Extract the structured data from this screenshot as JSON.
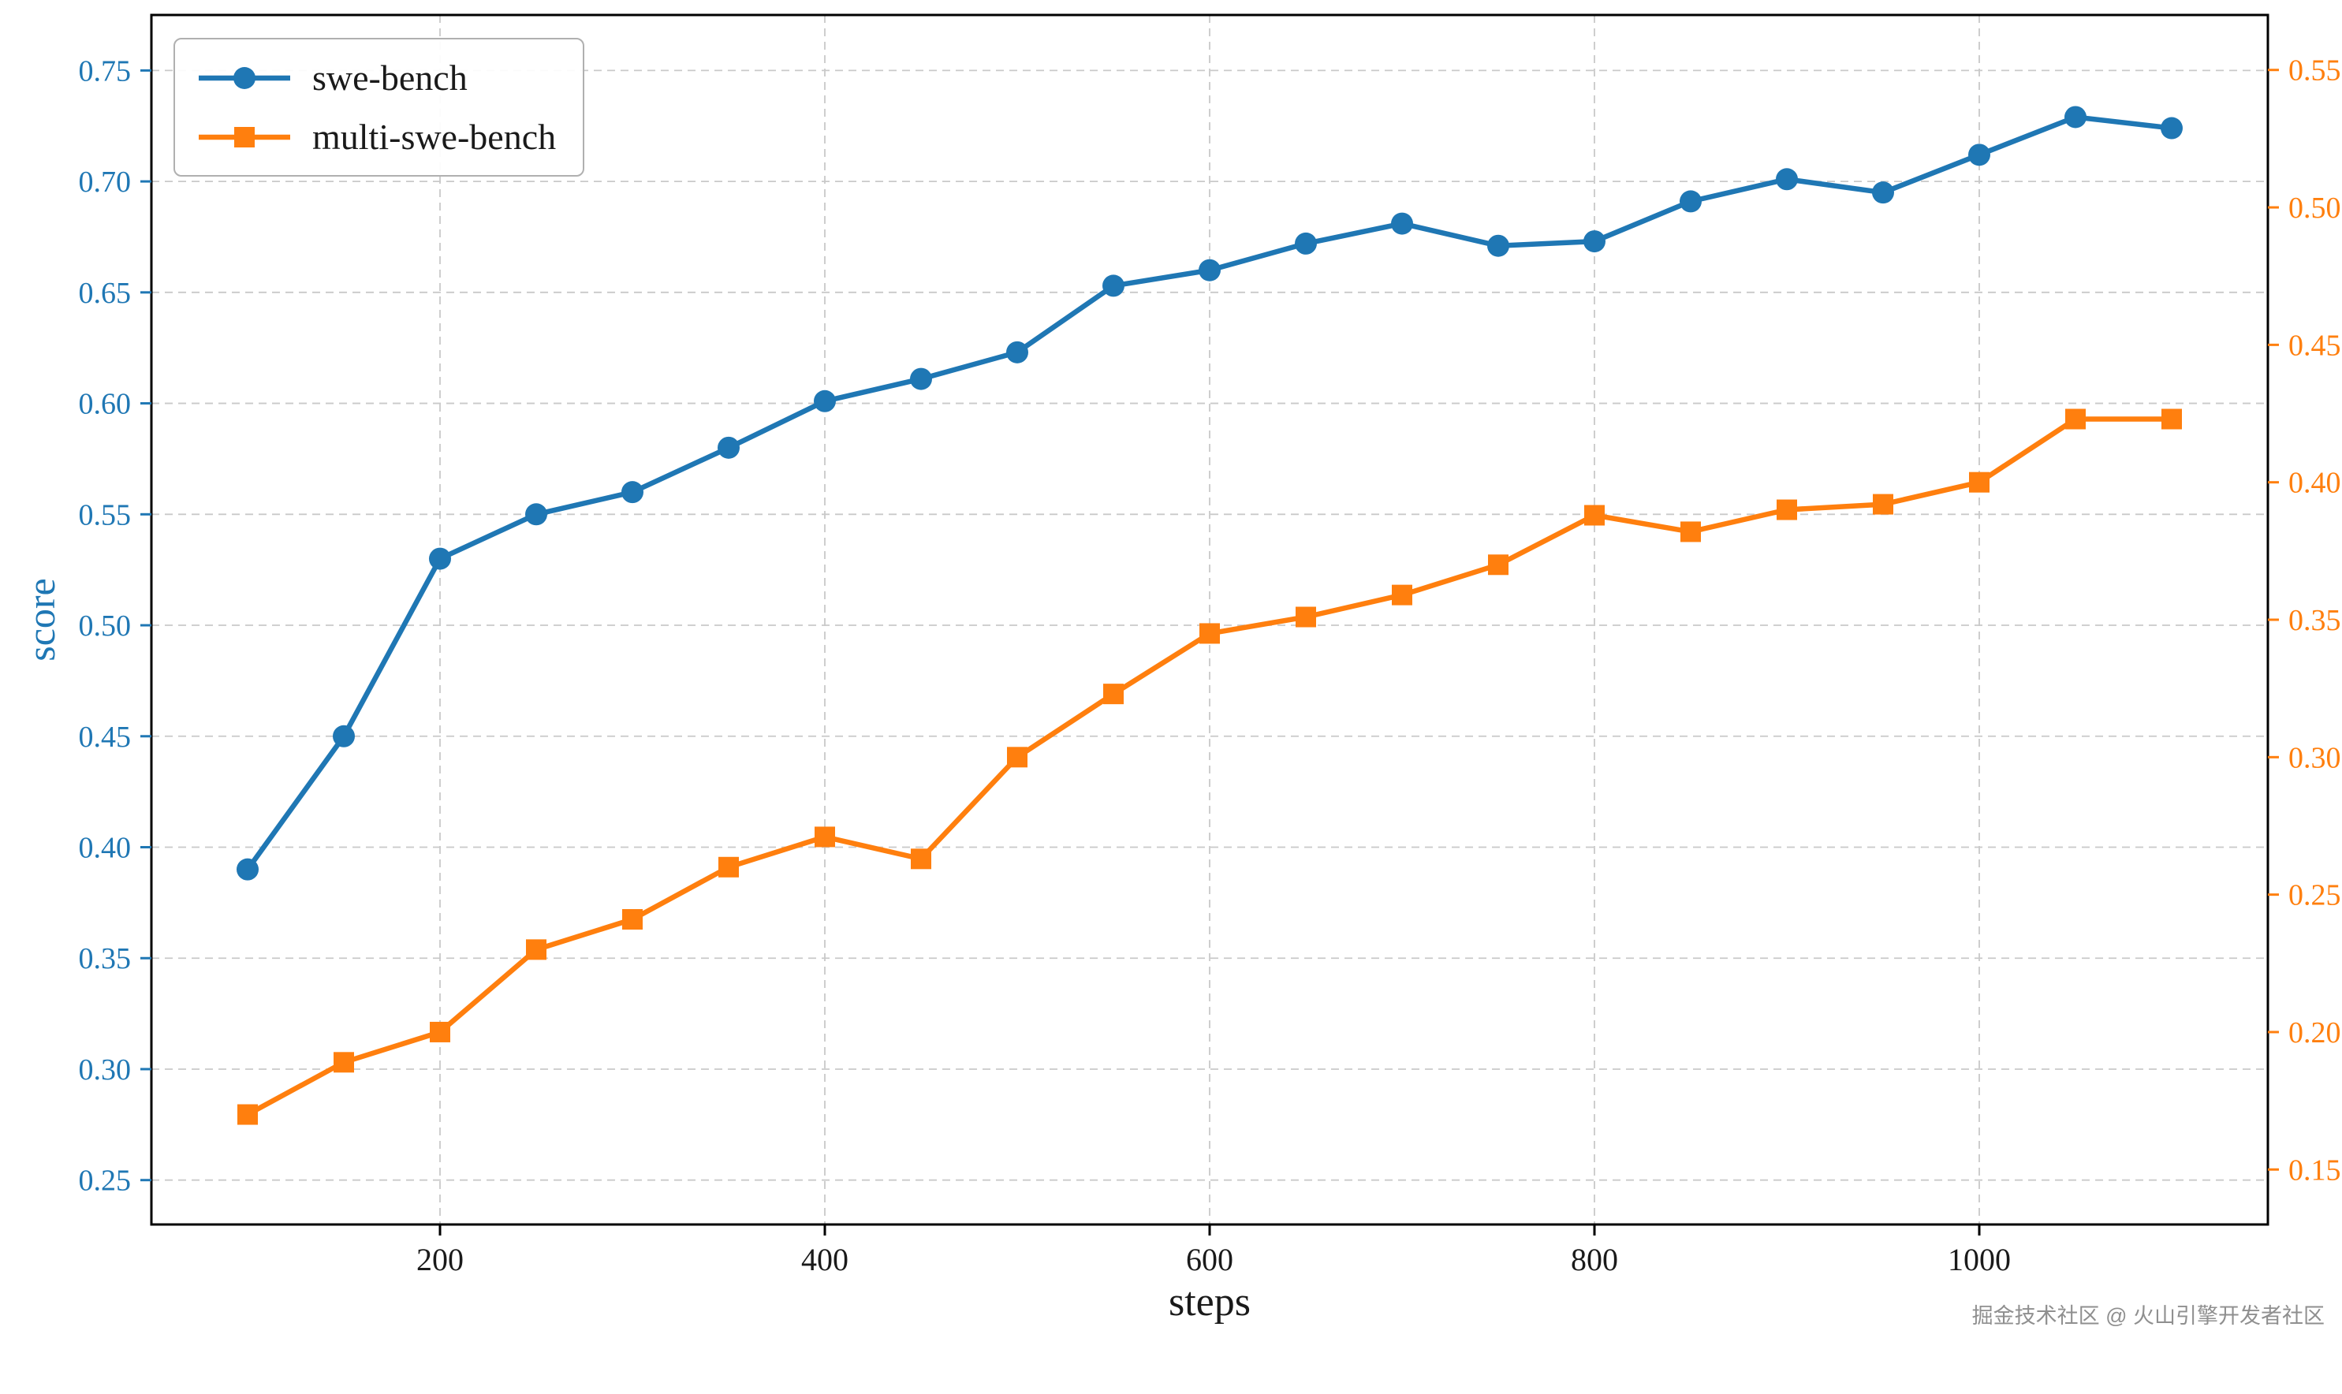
{
  "figure": {
    "xlabel": "steps",
    "ylabel": "score",
    "watermark": "掘金技术社区 @ 火山引擎开发者社区"
  },
  "colors": {
    "left_axis": "#1f77b4",
    "right_axis": "#ff7f0e",
    "spine": "#000000",
    "grid": "#c9c9c9",
    "tick_label": "#1a1a1a",
    "background": "#ffffff"
  },
  "chart_data": {
    "type": "line",
    "title": "",
    "xlabel": "steps",
    "ylabel_left": "score",
    "ylabel_right": "",
    "grid": true,
    "legend_position": "top-left",
    "x": [
      100,
      150,
      200,
      250,
      300,
      350,
      400,
      450,
      500,
      550,
      600,
      650,
      700,
      750,
      800,
      850,
      900,
      950,
      1000,
      1050,
      1100
    ],
    "xlim": [
      50,
      1150
    ],
    "xticks": [
      200,
      400,
      600,
      800,
      1000
    ],
    "left_ylim": [
      0.23,
      0.775
    ],
    "left_yticks": [
      0.25,
      0.3,
      0.35,
      0.4,
      0.45,
      0.5,
      0.55,
      0.6,
      0.65,
      0.7,
      0.75
    ],
    "right_ylim": [
      0.13,
      0.57
    ],
    "right_yticks": [
      0.15,
      0.2,
      0.25,
      0.3,
      0.35,
      0.4,
      0.45,
      0.5,
      0.55
    ],
    "series": [
      {
        "name": "swe-bench",
        "axis": "left",
        "color": "#1f77b4",
        "marker": "circle",
        "values": [
          0.39,
          0.45,
          0.53,
          0.55,
          0.56,
          0.58,
          0.601,
          0.611,
          0.623,
          0.653,
          0.66,
          0.672,
          0.681,
          0.671,
          0.673,
          0.691,
          0.701,
          0.695,
          0.712,
          0.729,
          0.724
        ]
      },
      {
        "name": "multi-swe-bench",
        "axis": "right",
        "color": "#ff7f0e",
        "marker": "square",
        "values": [
          0.17,
          0.189,
          0.2,
          0.23,
          0.241,
          0.26,
          0.271,
          0.263,
          0.3,
          0.323,
          0.345,
          0.351,
          0.359,
          0.37,
          0.388,
          0.382,
          0.39,
          0.392,
          0.4,
          0.423,
          0.423
        ]
      }
    ]
  }
}
